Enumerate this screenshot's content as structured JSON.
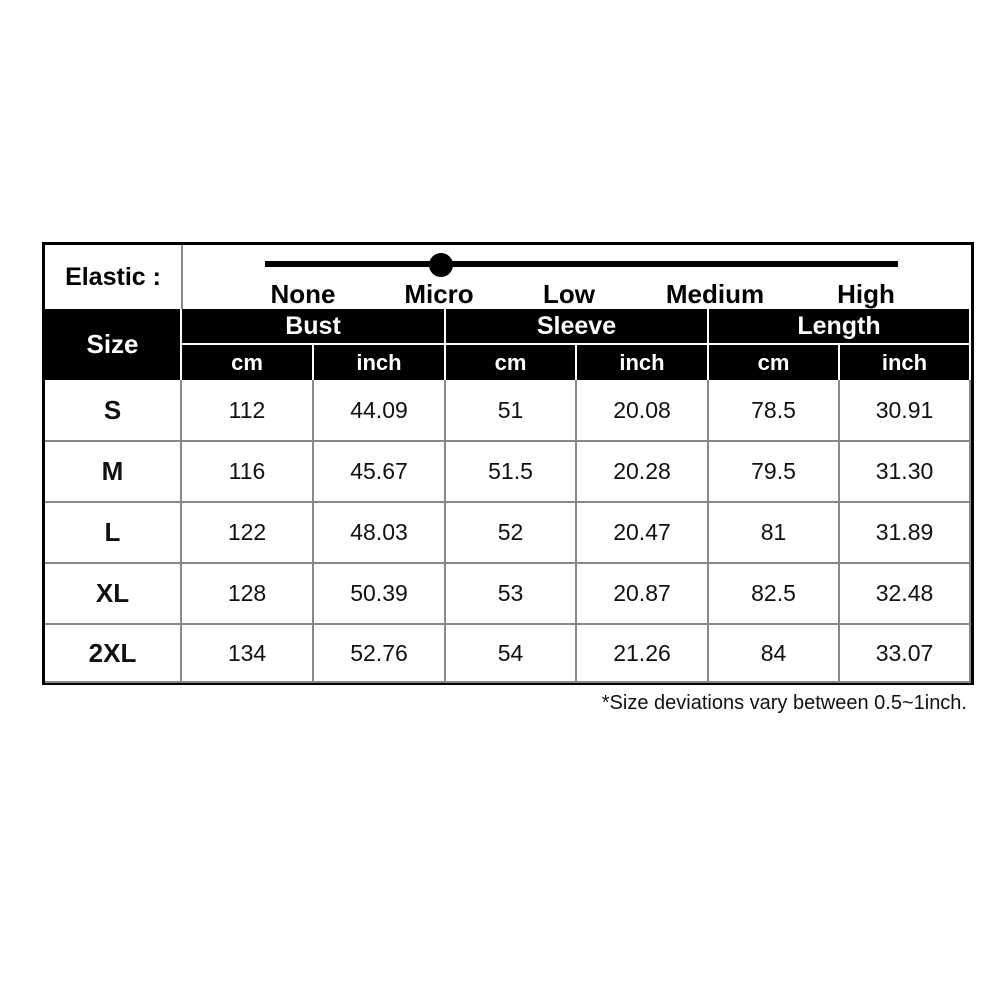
{
  "elastic": {
    "label": "Elastic :",
    "levels": [
      "None",
      "Micro",
      "Low",
      "Medium",
      "High"
    ],
    "selected": "Micro"
  },
  "header": {
    "size": "Size",
    "groups": [
      "Bust",
      "Sleeve",
      "Length"
    ],
    "units": [
      "cm",
      "inch",
      "cm",
      "inch",
      "cm",
      "inch"
    ]
  },
  "rows": [
    {
      "size": "S",
      "values": [
        "112",
        "44.09",
        "51",
        "20.08",
        "78.5",
        "30.91"
      ]
    },
    {
      "size": "M",
      "values": [
        "116",
        "45.67",
        "51.5",
        "20.28",
        "79.5",
        "31.30"
      ]
    },
    {
      "size": "L",
      "values": [
        "122",
        "48.03",
        "52",
        "20.47",
        "81",
        "31.89"
      ]
    },
    {
      "size": "XL",
      "values": [
        "128",
        "50.39",
        "53",
        "20.87",
        "82.5",
        "32.48"
      ]
    },
    {
      "size": "2XL",
      "values": [
        "134",
        "52.76",
        "54",
        "21.26",
        "84",
        "33.07"
      ]
    }
  ],
  "note": "*Size deviations vary between 0.5~1inch."
}
